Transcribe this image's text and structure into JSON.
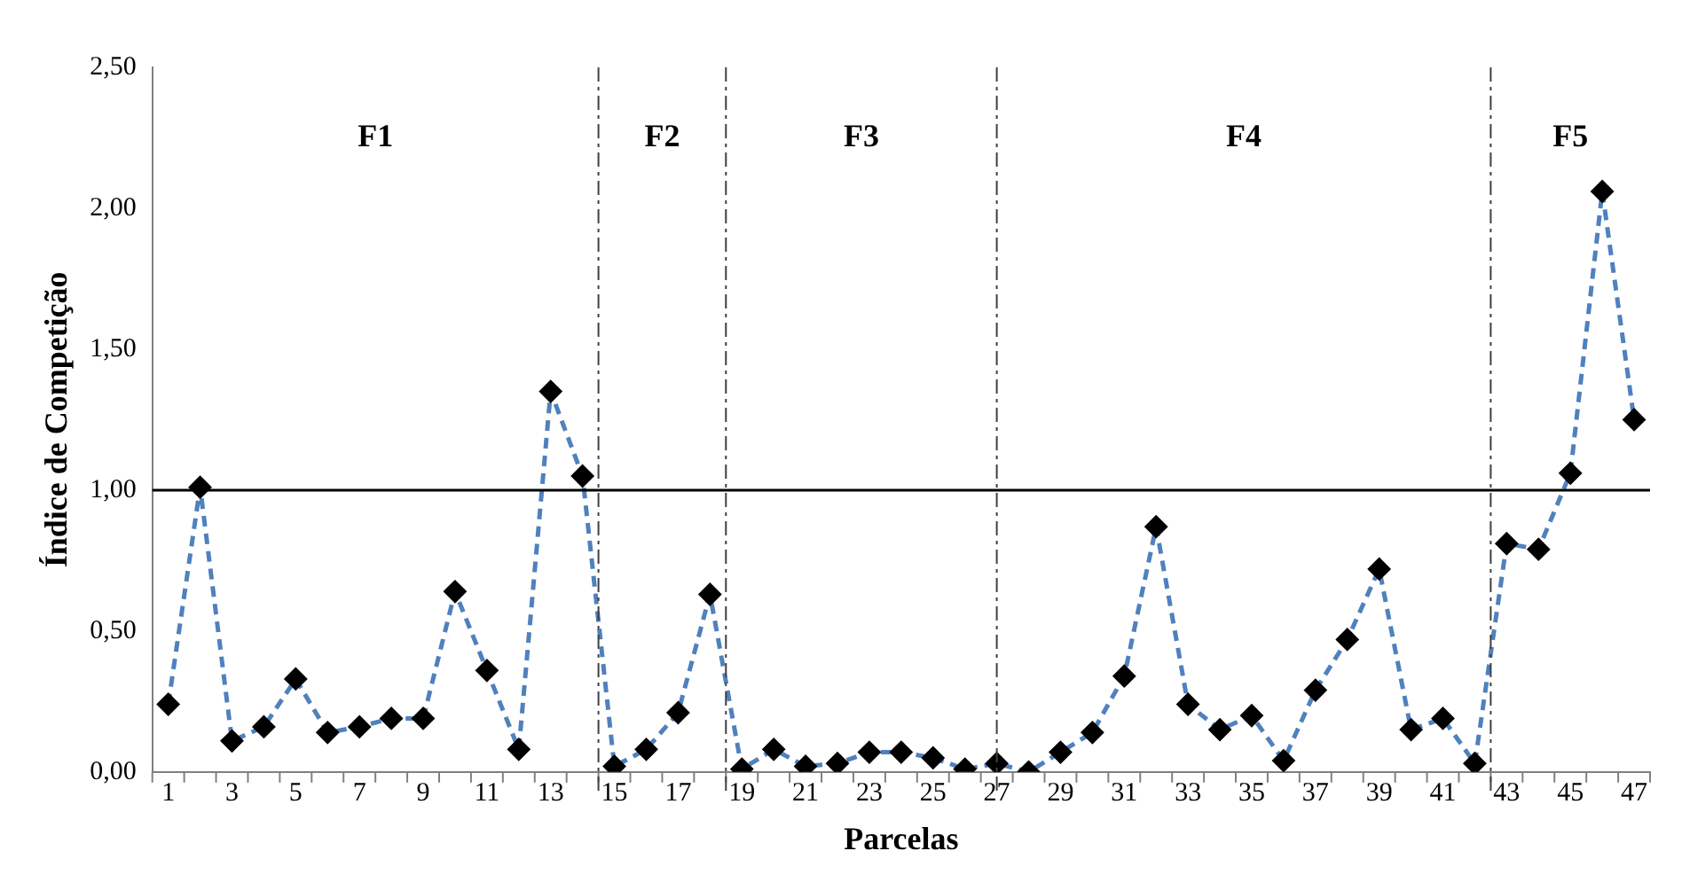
{
  "chart_data": {
    "type": "line",
    "xlabel": "Parcelas",
    "ylabel": "Índice de Competição",
    "x": [
      1,
      2,
      3,
      4,
      5,
      6,
      7,
      8,
      9,
      10,
      11,
      12,
      13,
      14,
      15,
      16,
      17,
      18,
      19,
      20,
      21,
      22,
      23,
      24,
      25,
      26,
      27,
      28,
      29,
      30,
      31,
      32,
      33,
      34,
      35,
      36,
      37,
      38,
      39,
      40,
      41,
      42,
      43,
      44,
      45,
      46,
      47
    ],
    "series": [
      {
        "color": "#4f81bd",
        "values": [
          0.24,
          1.01,
          0.11,
          0.16,
          0.33,
          0.14,
          0.16,
          0.19,
          0.19,
          0.64,
          0.36,
          0.08,
          1.35,
          1.05,
          0.02,
          0.08,
          0.21,
          0.63,
          0.01,
          0.08,
          0.02,
          0.03,
          0.07,
          0.07,
          0.05,
          0.01,
          0.03,
          0.0,
          0.07,
          0.14,
          0.34,
          0.87,
          0.24,
          0.15,
          0.2,
          0.04,
          0.29,
          0.47,
          0.72,
          0.15,
          0.19,
          0.03,
          0.81,
          0.79,
          1.06,
          2.06,
          1.25
        ]
      }
    ],
    "xlim": [
      0.5,
      47.5
    ],
    "xticks": [
      1,
      3,
      5,
      7,
      9,
      11,
      13,
      15,
      17,
      19,
      21,
      23,
      25,
      27,
      29,
      31,
      33,
      35,
      37,
      39,
      41,
      43,
      45,
      47
    ],
    "ylim": [
      0,
      2.5
    ],
    "yticks": [
      {
        "value": 0,
        "label": "0,00"
      },
      {
        "value": 0.5,
        "label": "0,50"
      },
      {
        "value": 1,
        "label": "1,00"
      },
      {
        "value": 1.5,
        "label": "1,50"
      },
      {
        "value": 2,
        "label": "2,00"
      },
      {
        "value": 2.5,
        "label": "2,50"
      }
    ],
    "ref_lines": [
      {
        "axis": "y",
        "value": 1,
        "color": "#000000",
        "line_style": "solid"
      },
      {
        "axis": "x",
        "value": 14.5,
        "color": "#404040",
        "line_style": "dashdot"
      },
      {
        "axis": "x",
        "value": 18.5,
        "color": "#404040",
        "line_style": "dashdot"
      },
      {
        "axis": "x",
        "value": 27,
        "color": "#404040",
        "line_style": "dashdot"
      },
      {
        "axis": "x",
        "value": 42.5,
        "color": "#404040",
        "line_style": "dashdot"
      }
    ],
    "annotations": [
      "F1",
      "F2",
      "F3",
      "F4",
      "F5"
    ],
    "grid": false,
    "legend": false,
    "marker": "diamond",
    "line_style": "dashed"
  }
}
